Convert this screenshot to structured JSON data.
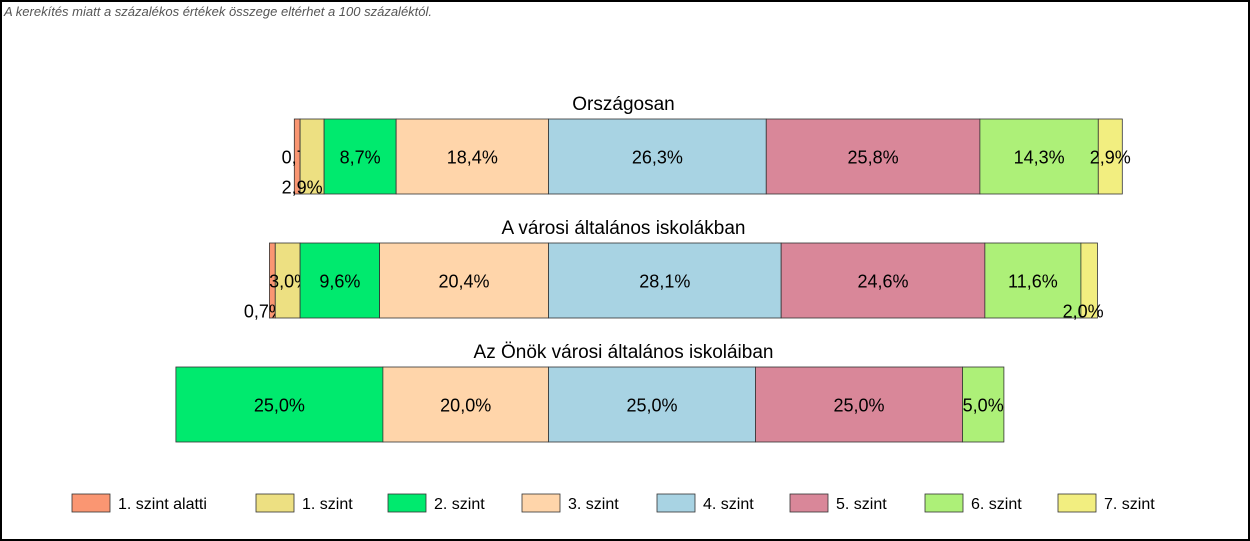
{
  "note": "A kerekítés miatt a  százalékos értékek összege eltérhet a 100 százaléktól.",
  "chart_data": {
    "type": "bar",
    "orientation": "horizontal-diverging-stacked",
    "center_between": [
      "3. szint",
      "4. szint"
    ],
    "series": [
      {
        "name": "1. szint alatti",
        "color": "#FA9672"
      },
      {
        "name": "1. szint",
        "color": "#EDE082"
      },
      {
        "name": "2. szint",
        "color": "#00EA6E"
      },
      {
        "name": "3. szint",
        "color": "#FFD5AA"
      },
      {
        "name": "4. szint",
        "color": "#A8D3E3"
      },
      {
        "name": "5. szint",
        "color": "#D98799"
      },
      {
        "name": "6. szint",
        "color": "#ADF078"
      },
      {
        "name": "7. szint",
        "color": "#F2EE80"
      }
    ],
    "groups": [
      {
        "title": "Országosan",
        "values": [
          0.7,
          2.9,
          8.7,
          18.4,
          26.3,
          25.8,
          14.3,
          2.9
        ],
        "labels": [
          "0,7%",
          "2,9%",
          "8,7%",
          "18,4%",
          "26,3%",
          "25,8%",
          "14,3%",
          "2,9%"
        ]
      },
      {
        "title": "A városi általános iskolákban",
        "values": [
          0.7,
          3.0,
          9.6,
          20.4,
          28.1,
          24.6,
          11.6,
          2.0
        ],
        "labels": [
          "0,7%",
          "3,0%",
          "9,6%",
          "20,4%",
          "28,1%",
          "24,6%",
          "11,6%",
          "2,0%"
        ]
      },
      {
        "title": "Az Önök városi általános iskoláiban",
        "values": [
          0,
          0,
          25.0,
          20.0,
          25.0,
          25.0,
          5.0,
          0
        ],
        "labels": [
          "",
          "",
          "25,0%",
          "20,0%",
          "25,0%",
          "25,0%",
          "5,0%",
          ""
        ]
      }
    ],
    "legend_position": "bottom",
    "grid": false
  }
}
